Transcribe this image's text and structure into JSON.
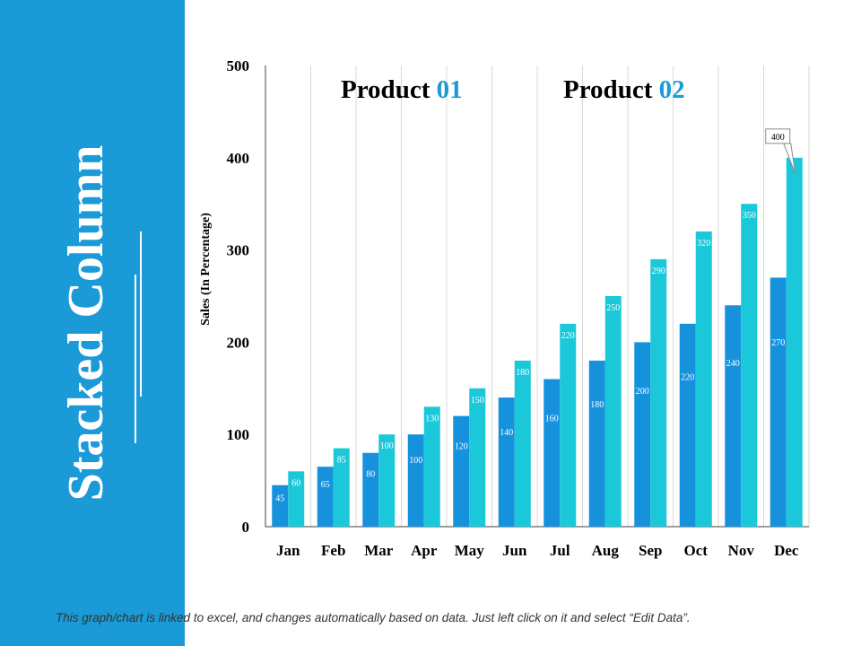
{
  "side_title": "Stacked Column",
  "products": [
    {
      "name": "Product",
      "number": "01"
    },
    {
      "name": "Product",
      "number": "02"
    }
  ],
  "footer_note": "This graph/chart is linked to excel, and changes automatically based on data. Just left click on it and select “Edit Data”.",
  "colors": {
    "panel": "#1a9ad6",
    "product_01": "#1692dd",
    "product_02": "#1bc8d9",
    "grid": "#d9d9d9",
    "axis": "#404040"
  },
  "chart_data": {
    "type": "bar",
    "title": "",
    "xlabel": "",
    "ylabel": "Sales  (In Percentage)",
    "ylim": [
      0,
      500
    ],
    "yticks": [
      0,
      100,
      200,
      300,
      400,
      500
    ],
    "categories": [
      "Jan",
      "Feb",
      "Mar",
      "Apr",
      "May",
      "Jun",
      "Jul",
      "Aug",
      "Sep",
      "Oct",
      "Nov",
      "Dec"
    ],
    "series": [
      {
        "name": "Product 01",
        "values": [
          45,
          65,
          80,
          100,
          120,
          140,
          160,
          180,
          200,
          220,
          240,
          270
        ]
      },
      {
        "name": "Product 02",
        "values": [
          60,
          85,
          100,
          130,
          150,
          180,
          220,
          250,
          290,
          320,
          350,
          400
        ]
      }
    ],
    "callout": {
      "series": "Product 02",
      "category": "Dec",
      "label": "400"
    }
  }
}
